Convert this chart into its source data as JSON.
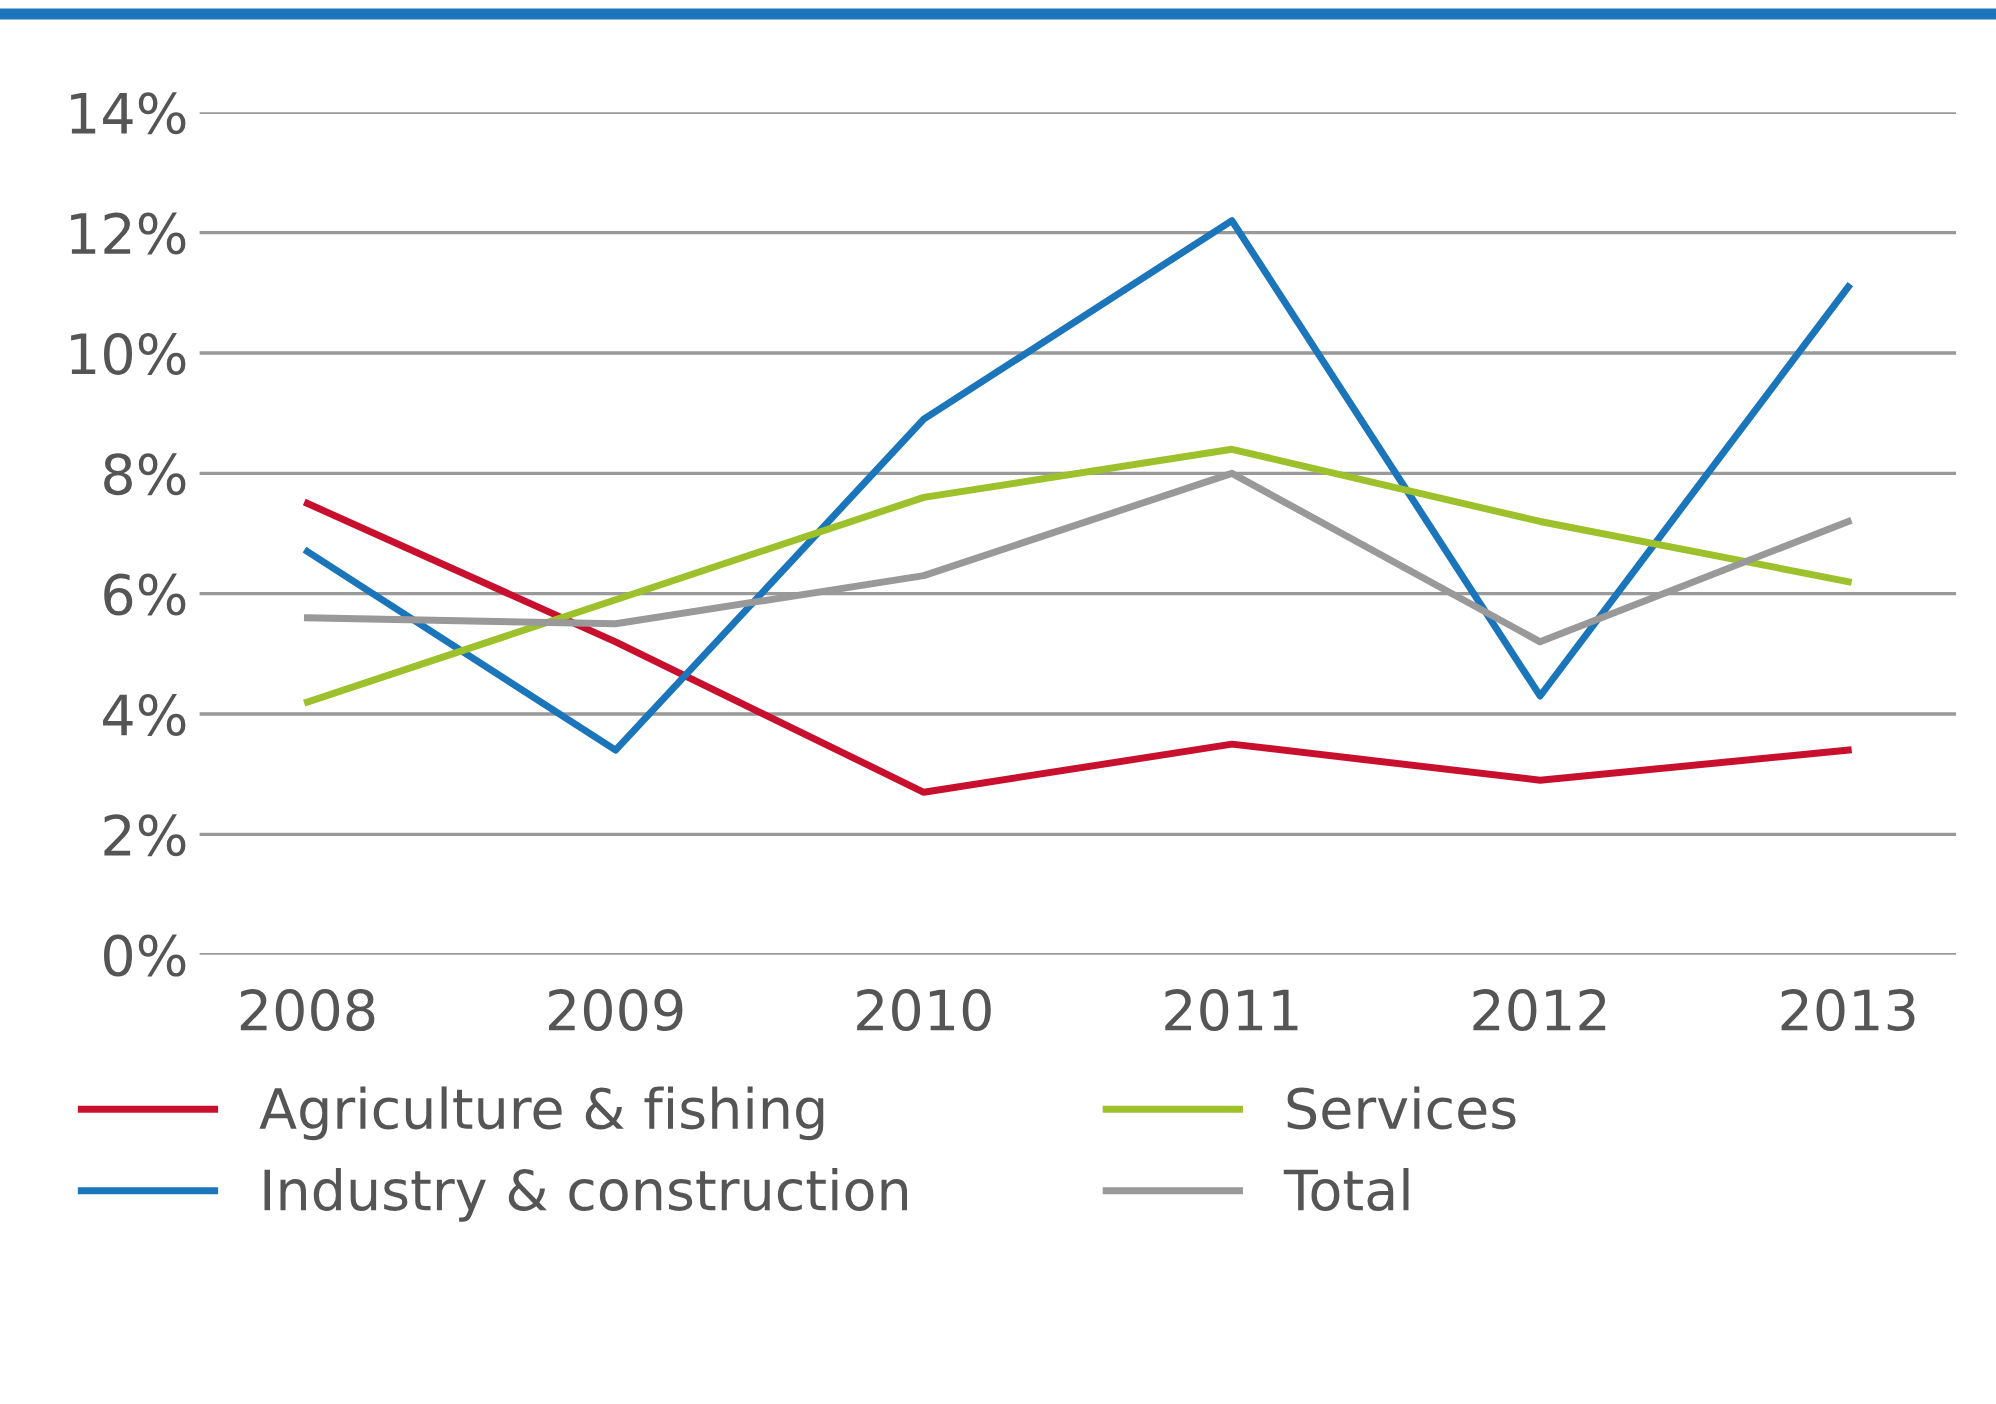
{
  "chart_data": {
    "type": "line",
    "categories": [
      "2008",
      "2009",
      "2010",
      "2011",
      "2012",
      "2013"
    ],
    "series": [
      {
        "name": "Agriculture & fishing",
        "color": "#c8102e",
        "values": [
          7.5,
          5.2,
          2.7,
          3.5,
          2.9,
          3.4
        ]
      },
      {
        "name": "Industry & construction",
        "color": "#1a75bb",
        "values": [
          6.7,
          3.4,
          8.9,
          12.2,
          4.3,
          11.1
        ]
      },
      {
        "name": "Services",
        "color": "#9cc12b",
        "values": [
          4.2,
          5.9,
          7.6,
          8.4,
          7.2,
          6.2
        ]
      },
      {
        "name": "Total",
        "color": "#999999",
        "values": [
          5.6,
          5.5,
          6.3,
          8.0,
          5.2,
          7.2
        ]
      }
    ],
    "ylim": [
      0,
      14
    ],
    "yticks": [
      {
        "value": 0,
        "label": "0%"
      },
      {
        "value": 2,
        "label": "2%"
      },
      {
        "value": 4,
        "label": "4%"
      },
      {
        "value": 6,
        "label": "6%"
      },
      {
        "value": 8,
        "label": "8%"
      },
      {
        "value": 10,
        "label": "10%"
      },
      {
        "value": 12,
        "label": "12%"
      },
      {
        "value": 14,
        "label": "14%"
      }
    ],
    "grid": "y",
    "legend": "bottom",
    "marker": "none",
    "line_style": "solid"
  }
}
